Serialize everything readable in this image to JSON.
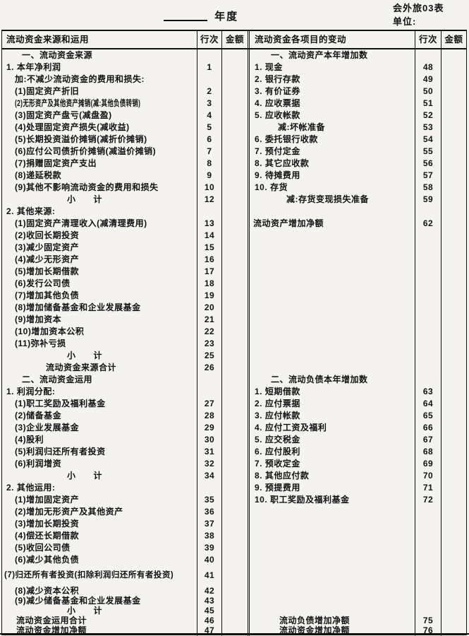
{
  "header": {
    "year_label": "年度",
    "form_no": "会外旅03表",
    "unit_label": "单位:"
  },
  "table": {
    "col_headers": {
      "left_title": "流动资金来源和运用",
      "left_line_no": "行次",
      "left_amount": "金额",
      "right_title": "流动资金各项目的变动",
      "right_line_no": "行次",
      "right_amount": "金额"
    },
    "rows": [
      {
        "l": "一、流动资金来源",
        "ln": "",
        "lc": "sec",
        "r": "一、流动资产本年增加数",
        "rn": "",
        "rc": "sec"
      },
      {
        "l": "1. 本年净利润",
        "ln": "1",
        "lc": "lv1",
        "r": "1. 现金",
        "rn": "48",
        "rc": "lv1"
      },
      {
        "l": "加:不减少流动资金的费用和损失:",
        "ln": "",
        "lc": "lv2",
        "r": "2. 银行存款",
        "rn": "49",
        "rc": "lv1"
      },
      {
        "l": "(1)固定资产折旧",
        "ln": "2",
        "lc": "lv2",
        "r": "3. 有价证券",
        "rn": "50",
        "rc": "lv1"
      },
      {
        "l": "(2)无形资产及其他资产摊销(减:其他负债转销)",
        "ln": "3",
        "lc": "lv2 condensed",
        "r": "4. 应收票据",
        "rn": "51",
        "rc": "lv1"
      },
      {
        "l": "(3)固定资产盘亏(减盘盈)",
        "ln": "4",
        "lc": "lv2",
        "r": "5. 应收帐款",
        "rn": "52",
        "rc": "lv1"
      },
      {
        "l": "(4)处理固定资产损失(减收益)",
        "ln": "5",
        "lc": "lv2",
        "r": "减:坏帐准备",
        "rn": "53",
        "rc": "lv2"
      },
      {
        "l": "(5)长期投资溢价摊销(减折价摊销)",
        "ln": "6",
        "lc": "lv2",
        "r": "6. 委托银行收款",
        "rn": "54",
        "rc": "lv1"
      },
      {
        "l": "(6)应付公司债折价摊销(减溢价摊销)",
        "ln": "7",
        "lc": "lv2",
        "r": "7. 预付定金",
        "rn": "55",
        "rc": "lv1"
      },
      {
        "l": "(7)捐赠固定资产支出",
        "ln": "8",
        "lc": "lv2",
        "r": "8. 其它应收款",
        "rn": "56",
        "rc": "lv1"
      },
      {
        "l": "(8)递延税款",
        "ln": "9",
        "lc": "lv2",
        "r": "9. 待摊费用",
        "rn": "57",
        "rc": "lv1"
      },
      {
        "l": "(9)其他不影响流动资金的费用和损失",
        "ln": "10",
        "lc": "lv2",
        "r": "10. 存货",
        "rn": "58",
        "rc": "lv1"
      },
      {
        "l": "小　　计",
        "ln": "12",
        "lc": "subtotal",
        "r": "减:存货变现损失准备",
        "rn": "59",
        "rc": "lv3"
      },
      {
        "l": "2. 其他来源:",
        "ln": "",
        "lc": "lv1",
        "r": "",
        "rn": "",
        "rc": ""
      },
      {
        "l": "(1)固定资产清理收入(减清理费用)",
        "ln": "13",
        "lc": "lv2",
        "r": "流动资产增加净额",
        "rn": "62",
        "rc": "lv0"
      },
      {
        "l": "(2)收回长期投资",
        "ln": "14",
        "lc": "lv2",
        "r": "",
        "rn": "",
        "rc": ""
      },
      {
        "l": "(3)减少固定资产",
        "ln": "15",
        "lc": "lv2",
        "r": "",
        "rn": "",
        "rc": ""
      },
      {
        "l": "(4)减少无形资产",
        "ln": "16",
        "lc": "lv2",
        "r": "",
        "rn": "",
        "rc": ""
      },
      {
        "l": "(5)增加长期借款",
        "ln": "17",
        "lc": "lv2",
        "r": "",
        "rn": "",
        "rc": ""
      },
      {
        "l": "(6)发行公司债",
        "ln": "18",
        "lc": "lv2",
        "r": "",
        "rn": "",
        "rc": ""
      },
      {
        "l": "(7)增加其他负债",
        "ln": "19",
        "lc": "lv2",
        "r": "",
        "rn": "",
        "rc": ""
      },
      {
        "l": "(8)增加储备基金和企业发展基金",
        "ln": "20",
        "lc": "lv2",
        "r": "",
        "rn": "",
        "rc": ""
      },
      {
        "l": "(9)增加资本",
        "ln": "21",
        "lc": "lv2",
        "r": "",
        "rn": "",
        "rc": ""
      },
      {
        "l": "(10)增加资本公积",
        "ln": "22",
        "lc": "lv2",
        "r": "",
        "rn": "",
        "rc": ""
      },
      {
        "l": "(11)弥补亏损",
        "ln": "23",
        "lc": "lv2",
        "r": "",
        "rn": "",
        "rc": ""
      },
      {
        "l": "小　　计",
        "ln": "25",
        "lc": "subtotal",
        "r": "",
        "rn": "",
        "rc": ""
      },
      {
        "l": "流动资金来源合计",
        "ln": "26",
        "lc": "total-mid",
        "r": "",
        "rn": "",
        "rc": ""
      },
      {
        "l": "二、流动资金运用",
        "ln": "",
        "lc": "sec",
        "r": "二、流动负债本年增加数",
        "rn": "",
        "rc": "sec"
      },
      {
        "l": "1. 利润分配:",
        "ln": "",
        "lc": "lv1",
        "r": "1. 短期借款",
        "rn": "63",
        "rc": "lv1"
      },
      {
        "l": "(1)职工奖励及福利基金",
        "ln": "27",
        "lc": "lv2",
        "r": "2. 应付票据",
        "rn": "64",
        "rc": "lv1"
      },
      {
        "l": "(2)储备基金",
        "ln": "28",
        "lc": "lv2",
        "r": "3. 应付帐款",
        "rn": "65",
        "rc": "lv1"
      },
      {
        "l": "(3)企业发展基金",
        "ln": "29",
        "lc": "lv2",
        "r": "4. 应付工资及福利",
        "rn": "66",
        "rc": "lv1"
      },
      {
        "l": "(4)股利",
        "ln": "30",
        "lc": "lv2",
        "r": "5. 应交税金",
        "rn": "67",
        "rc": "lv1"
      },
      {
        "l": "(5)利润归还所有者投资",
        "ln": "31",
        "lc": "lv2",
        "r": "6. 应付股利",
        "rn": "68",
        "rc": "lv1"
      },
      {
        "l": "(6)利润增资",
        "ln": "32",
        "lc": "lv2",
        "r": "7. 预收定金",
        "rn": "69",
        "rc": "lv1"
      },
      {
        "l": "小　　计",
        "ln": "34",
        "lc": "subtotal",
        "r": "8. 其他应付款",
        "rn": "70",
        "rc": "lv1"
      },
      {
        "l": "2. 其他运用:",
        "ln": "",
        "lc": "lv1",
        "r": "9. 预提费用",
        "rn": "71",
        "rc": "lv1"
      },
      {
        "l": "(1)增加固定资产",
        "ln": "35",
        "lc": "lv2",
        "r": "10. 职工奖励及福利基金",
        "rn": "72",
        "rc": "lv1"
      },
      {
        "l": "(2)增加无形资产及其他资产",
        "ln": "36",
        "lc": "lv2",
        "r": "",
        "rn": "",
        "rc": ""
      },
      {
        "l": "(3)增加长期投资",
        "ln": "37",
        "lc": "lv2",
        "r": "",
        "rn": "",
        "rc": ""
      },
      {
        "l": "(4)偿还长期借款",
        "ln": "38",
        "lc": "lv2",
        "r": "",
        "rn": "",
        "rc": ""
      },
      {
        "l": "(5)收回公司债",
        "ln": "39",
        "lc": "lv2",
        "r": "",
        "rn": "",
        "rc": ""
      },
      {
        "l": "(6)减少其他负债",
        "ln": "40",
        "lc": "lv2",
        "r": "",
        "rn": "",
        "rc": ""
      },
      {
        "l": "(7)归还所有者投资(扣除利润归还所有者投资)",
        "ln": "41",
        "lc": "lv2",
        "h": "tall",
        "r": "",
        "rn": "",
        "rc": ""
      },
      {
        "l": "(8)减少资本公积",
        "ln": "42",
        "lc": "lv2",
        "h": "short",
        "r": "",
        "rn": "",
        "rc": ""
      },
      {
        "l": "(9)减少储备基金和企业发展基金",
        "ln": "43",
        "lc": "lv2",
        "h": "short",
        "r": "",
        "rn": "",
        "rc": ""
      },
      {
        "l": "小　　计",
        "ln": "45",
        "lc": "subtotal",
        "h": "short",
        "r": "",
        "rn": "",
        "rc": ""
      },
      {
        "l": "流动资金运用合计",
        "ln": "46",
        "lc": "total-low",
        "h": "short",
        "r": "流动负债增加净额",
        "rn": "75",
        "rc": "total"
      },
      {
        "l": "流动资金增加净额",
        "ln": "47",
        "lc": "total-low",
        "h": "short",
        "r": "流动资金增加净额",
        "rn": "76",
        "rc": "total"
      }
    ]
  }
}
